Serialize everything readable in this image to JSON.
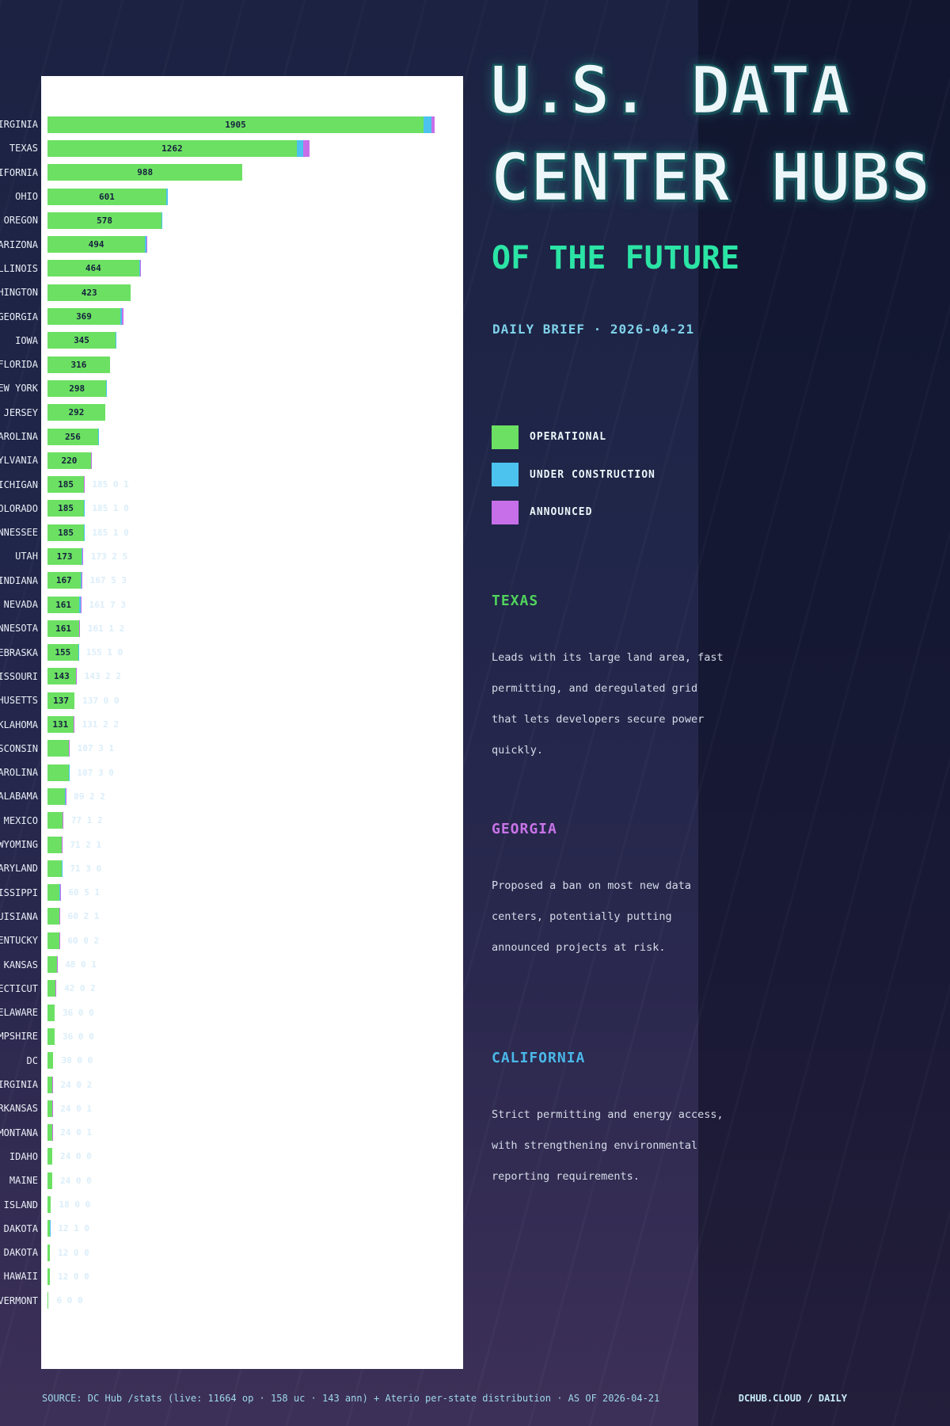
{
  "title": {
    "line1": "U.S. DATA",
    "line2": "CENTER HUBS",
    "subtitle": "OF THE FUTURE",
    "kicker": "DAILY BRIEF · 2026-04-21"
  },
  "legend": [
    {
      "label": "OPERATIONAL",
      "color": "#6ce063"
    },
    {
      "label": "UNDER CONSTRUCTION",
      "color": "#4cc2ee"
    },
    {
      "label": "ANNOUNCED",
      "color": "#c76fe9"
    }
  ],
  "sections": [
    {
      "heading": "TEXAS",
      "color": "#50d35c",
      "lines": [
        "Leads with its large land area, fast",
        "permitting, and deregulated grid",
        "that lets developers secure power",
        "quickly."
      ]
    },
    {
      "heading": "GEORGIA",
      "color": "#c873e8",
      "lines": [
        "Proposed a ban on most new data",
        "centers, potentially putting",
        "announced projects at risk."
      ]
    },
    {
      "heading": "CALIFORNIA",
      "color": "#4ab8e8",
      "lines": [
        "Strict permitting and energy access,",
        "with strengthening environmental",
        "reporting requirements."
      ]
    }
  ],
  "footer": {
    "source": "SOURCE: DC Hub /stats (live: 11664 op · 158 uc · 143 ann) + Aterio per-state distribution · AS OF 2026-04-21",
    "brand": "DCHUB.CLOUD / DAILY"
  },
  "chart_data": {
    "type": "bar",
    "orientation": "horizontal",
    "series": [
      "operational",
      "under_construction",
      "announced"
    ],
    "colors": {
      "operational": "#6ce063",
      "under_construction": "#4cc2ee",
      "announced": "#c76fe9",
      "value_label": "#15203d",
      "detail_label": "#dbeefa",
      "plot_background": "#ffffff"
    },
    "x_max_reference": {
      "value": 1905,
      "pixels": 475
    },
    "states": [
      {
        "name": "VIRGINIA",
        "op": 1905,
        "uc": 40,
        "ann": 16,
        "value_label": "1905",
        "detail_label": ""
      },
      {
        "name": "TEXAS",
        "op": 1262,
        "uc": 32,
        "ann": 32,
        "value_label": "1262",
        "detail_label": ""
      },
      {
        "name": "CALIFORNIA",
        "op": 988,
        "uc": 0,
        "ann": 0,
        "value_label": "988",
        "detail_label": ""
      },
      {
        "name": "OHIO",
        "op": 601,
        "uc": 8,
        "ann": 0,
        "value_label": "601",
        "detail_label": ""
      },
      {
        "name": "OREGON",
        "op": 578,
        "uc": 4,
        "ann": 0,
        "value_label": "578",
        "detail_label": ""
      },
      {
        "name": "ARIZONA",
        "op": 494,
        "uc": 8,
        "ann": 4,
        "value_label": "494",
        "detail_label": ""
      },
      {
        "name": "ILLINOIS",
        "op": 464,
        "uc": 4,
        "ann": 4,
        "value_label": "464",
        "detail_label": ""
      },
      {
        "name": "WASHINGTON",
        "op": 423,
        "uc": 0,
        "ann": 0,
        "value_label": "423",
        "detail_label": ""
      },
      {
        "name": "GEORGIA",
        "op": 369,
        "uc": 8,
        "ann": 8,
        "value_label": "369",
        "detail_label": ""
      },
      {
        "name": "IOWA",
        "op": 345,
        "uc": 4,
        "ann": 0,
        "value_label": "345",
        "detail_label": ""
      },
      {
        "name": "FLORIDA",
        "op": 316,
        "uc": 0,
        "ann": 0,
        "value_label": "316",
        "detail_label": ""
      },
      {
        "name": "NEW YORK",
        "op": 298,
        "uc": 4,
        "ann": 0,
        "value_label": "298",
        "detail_label": ""
      },
      {
        "name": "NEW JERSEY",
        "op": 292,
        "uc": 0,
        "ann": 0,
        "value_label": "292",
        "detail_label": ""
      },
      {
        "name": "NORTH CAROLINA",
        "op": 256,
        "uc": 4,
        "ann": 0,
        "value_label": "256",
        "detail_label": ""
      },
      {
        "name": "PENNSYLVANIA",
        "op": 220,
        "uc": 0,
        "ann": 6,
        "value_label": "220",
        "detail_label": ""
      },
      {
        "name": "MICHIGAN",
        "op": 185,
        "uc": 0,
        "ann": 1,
        "value_label": "185",
        "detail_label": "185 0 1"
      },
      {
        "name": "COLORADO",
        "op": 185,
        "uc": 1,
        "ann": 0,
        "value_label": "185",
        "detail_label": "185 1 0"
      },
      {
        "name": "TENNESSEE",
        "op": 185,
        "uc": 1,
        "ann": 0,
        "value_label": "185",
        "detail_label": "185 1 0"
      },
      {
        "name": "UTAH",
        "op": 173,
        "uc": 2,
        "ann": 5,
        "value_label": "173",
        "detail_label": "173 2 5"
      },
      {
        "name": "INDIANA",
        "op": 167,
        "uc": 5,
        "ann": 3,
        "value_label": "167",
        "detail_label": "167 5 3"
      },
      {
        "name": "NEVADA",
        "op": 161,
        "uc": 7,
        "ann": 3,
        "value_label": "161",
        "detail_label": "161 7 3"
      },
      {
        "name": "MINNESOTA",
        "op": 161,
        "uc": 1,
        "ann": 2,
        "value_label": "161",
        "detail_label": "161 1 2"
      },
      {
        "name": "NEBRASKA",
        "op": 155,
        "uc": 1,
        "ann": 0,
        "value_label": "155",
        "detail_label": "155 1 0"
      },
      {
        "name": "MISSOURI",
        "op": 143,
        "uc": 2,
        "ann": 2,
        "value_label": "143",
        "detail_label": "143 2 2"
      },
      {
        "name": "MASSACHUSETTS",
        "op": 137,
        "uc": 0,
        "ann": 0,
        "value_label": "137",
        "detail_label": "137 0 0"
      },
      {
        "name": "OKLAHOMA",
        "op": 131,
        "uc": 2,
        "ann": 2,
        "value_label": "131",
        "detail_label": "131 2 2"
      },
      {
        "name": "WISCONSIN",
        "op": 107,
        "uc": 3,
        "ann": 1,
        "value_label": "",
        "detail_label": "107 3 1"
      },
      {
        "name": "SOUTH CAROLINA",
        "op": 107,
        "uc": 3,
        "ann": 0,
        "value_label": "",
        "detail_label": "107 3 0"
      },
      {
        "name": "ALABAMA",
        "op": 89,
        "uc": 2,
        "ann": 2,
        "value_label": "",
        "detail_label": "89 2 2"
      },
      {
        "name": "NEW MEXICO",
        "op": 77,
        "uc": 1,
        "ann": 2,
        "value_label": "",
        "detail_label": "77 1 2"
      },
      {
        "name": "WYOMING",
        "op": 71,
        "uc": 2,
        "ann": 1,
        "value_label": "",
        "detail_label": "71 2 1"
      },
      {
        "name": "MARYLAND",
        "op": 71,
        "uc": 3,
        "ann": 0,
        "value_label": "",
        "detail_label": "71 3 0"
      },
      {
        "name": "MISSISSIPPI",
        "op": 60,
        "uc": 5,
        "ann": 1,
        "value_label": "",
        "detail_label": "60 5 1"
      },
      {
        "name": "LOUISIANA",
        "op": 60,
        "uc": 2,
        "ann": 1,
        "value_label": "",
        "detail_label": "60 2 1"
      },
      {
        "name": "KENTUCKY",
        "op": 60,
        "uc": 0,
        "ann": 2,
        "value_label": "",
        "detail_label": "60 0 2"
      },
      {
        "name": "KANSAS",
        "op": 48,
        "uc": 0,
        "ann": 1,
        "value_label": "",
        "detail_label": "48 0 1"
      },
      {
        "name": "CONNECTICUT",
        "op": 42,
        "uc": 0,
        "ann": 2,
        "value_label": "",
        "detail_label": "42 0 2"
      },
      {
        "name": "DELAWARE",
        "op": 36,
        "uc": 0,
        "ann": 0,
        "value_label": "",
        "detail_label": "36 0 0"
      },
      {
        "name": "NEW HAMPSHIRE",
        "op": 36,
        "uc": 0,
        "ann": 0,
        "value_label": "",
        "detail_label": "36 0 0"
      },
      {
        "name": "DC",
        "op": 30,
        "uc": 0,
        "ann": 0,
        "value_label": "",
        "detail_label": "30 0 0"
      },
      {
        "name": "WEST VIRGINIA",
        "op": 24,
        "uc": 0,
        "ann": 2,
        "value_label": "",
        "detail_label": "24 0 2"
      },
      {
        "name": "ARKANSAS",
        "op": 24,
        "uc": 0,
        "ann": 1,
        "value_label": "",
        "detail_label": "24 0 1"
      },
      {
        "name": "MONTANA",
        "op": 24,
        "uc": 0,
        "ann": 1,
        "value_label": "",
        "detail_label": "24 0 1"
      },
      {
        "name": "IDAHO",
        "op": 24,
        "uc": 0,
        "ann": 0,
        "value_label": "",
        "detail_label": "24 0 0"
      },
      {
        "name": "MAINE",
        "op": 24,
        "uc": 0,
        "ann": 0,
        "value_label": "",
        "detail_label": "24 0 0"
      },
      {
        "name": "RHODE ISLAND",
        "op": 18,
        "uc": 0,
        "ann": 0,
        "value_label": "",
        "detail_label": "18 0 0"
      },
      {
        "name": "NORTH DAKOTA",
        "op": 12,
        "uc": 1,
        "ann": 0,
        "value_label": "",
        "detail_label": "12 1 0"
      },
      {
        "name": "SOUTH DAKOTA",
        "op": 12,
        "uc": 0,
        "ann": 0,
        "value_label": "",
        "detail_label": "12 0 0"
      },
      {
        "name": "HAWAII",
        "op": 12,
        "uc": 0,
        "ann": 0,
        "value_label": "",
        "detail_label": "12 0 0"
      },
      {
        "name": "VERMONT",
        "op": 6,
        "uc": 0,
        "ann": 0,
        "value_label": "",
        "detail_label": "6 0 0"
      }
    ]
  }
}
